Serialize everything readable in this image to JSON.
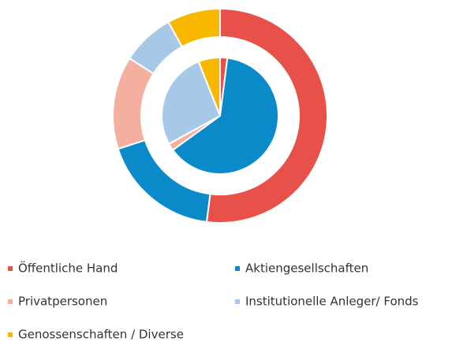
{
  "chart_data": {
    "type": "pie",
    "categories": [
      "Öffentliche Hand",
      "Aktiengesellschaften",
      "Privatpersonen",
      "Institutionelle Anleger/ Fonds",
      "Genossenschaften / Diverse"
    ],
    "colors": [
      "#e8504a",
      "#0a8ac8",
      "#f4b09e",
      "#a8c8ea",
      "#f8b800"
    ],
    "series": [
      {
        "values": [
          52,
          18,
          14,
          8,
          8
        ]
      },
      {
        "values": [
          2,
          63,
          2,
          27,
          6
        ]
      }
    ],
    "legend": "bottom"
  }
}
